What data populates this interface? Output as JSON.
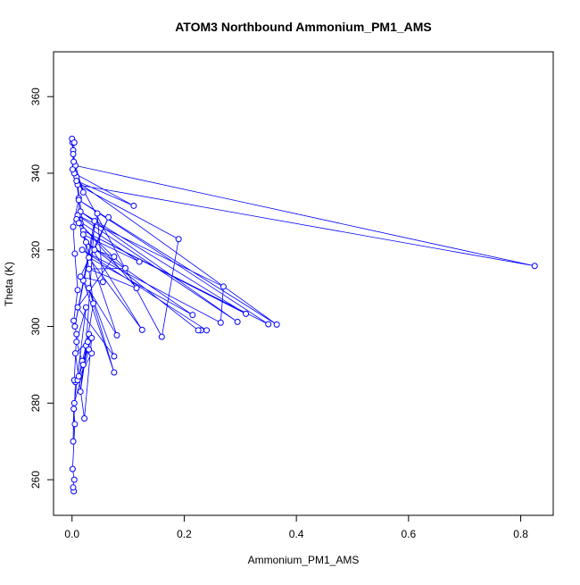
{
  "chart_data": {
    "type": "scatter",
    "connect": true,
    "title": "ATOM3 Northbound Ammonium_PM1_AMS",
    "x_label": "Ammonium_PM1_AMS",
    "y_label": "Theta (K)",
    "color": "#0000ff",
    "x": [
      0.003,
      0.002,
      0.004,
      0.001,
      0.005,
      0.003,
      0.002,
      0.006,
      0.004,
      0.008,
      0.003,
      0.01,
      0.005,
      0.002,
      0.012,
      0.015,
      0.008,
      0.02,
      0.006,
      0.825,
      0.01,
      0.19,
      0.16,
      0.004,
      0.11,
      0.008,
      0.365,
      0.012,
      0.35,
      0.02,
      0.31,
      0.015,
      0.295,
      0.01,
      0.27,
      0.265,
      0.018,
      0.24,
      0.23,
      0.225,
      0.025,
      0.215,
      0.03,
      0.125,
      0.02,
      0.12,
      0.008,
      0.115,
      0.03,
      0.095,
      0.012,
      0.08,
      0.02,
      0.075,
      0.03,
      0.075,
      0.01,
      0.075,
      0.04,
      0.065,
      0.015,
      0.055,
      0.045,
      0.005,
      0.04,
      0.025,
      0.035,
      0.01,
      0.03,
      0.02,
      0.015,
      0.028,
      0.006,
      0.022,
      0.035,
      0.012,
      0.018,
      0.03,
      0.004,
      0.025,
      0.008,
      0.02,
      0.038,
      0.002,
      0.001,
      0.0,
      0.003,
      0.001,
      0.002,
      0.004
    ],
    "values": [
      257,
      258,
      260,
      262.8,
      274.5,
      278.5,
      270,
      285.5,
      286,
      298,
      301.5,
      309.5,
      319,
      326,
      333.5,
      327,
      339,
      335,
      342,
      315.8,
      337,
      322.8,
      297.3,
      340,
      331.5,
      338,
      300.5,
      333,
      300.6,
      325,
      303.3,
      330,
      301.2,
      329,
      310.4,
      301,
      320,
      299,
      299,
      299,
      322,
      303,
      318,
      299.1,
      324,
      316.9,
      328,
      310,
      315,
      315.2,
      327,
      297.7,
      312,
      288,
      310,
      292.2,
      305,
      318.2,
      320,
      328.5,
      313,
      311.6,
      329.5,
      300,
      327.5,
      295,
      293,
      286,
      298,
      290,
      283,
      296,
      293,
      276,
      297,
      287,
      291,
      294,
      280,
      305,
      296,
      290,
      306,
      346,
      348,
      349,
      343,
      341,
      345,
      348
    ],
    "xlim": [
      -0.033,
      0.858
    ],
    "ylim": [
      250.7,
      371.7
    ],
    "xticks": [
      {
        "value": 0,
        "label": "0.0"
      },
      0.2,
      0.4,
      0.6,
      0.8
    ],
    "yticks": [
      260,
      280,
      300,
      320,
      340,
      360
    ]
  }
}
